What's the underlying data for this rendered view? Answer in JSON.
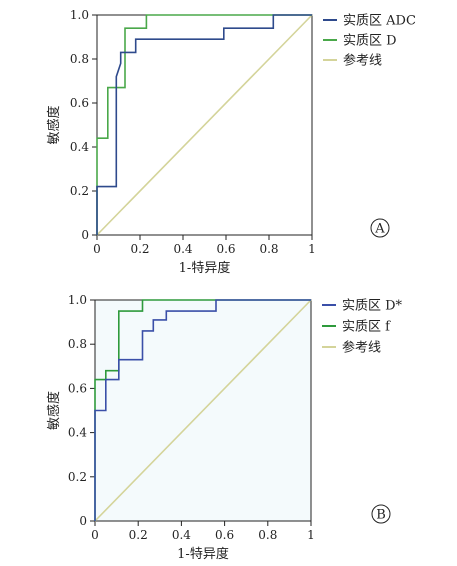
{
  "chart_data": [
    {
      "type": "line",
      "panel_label": "A",
      "xlabel": "1-特异度",
      "ylabel": "敏感度",
      "xlim": [
        0,
        1
      ],
      "ylim": [
        0,
        1
      ],
      "xticks": [
        "0",
        "0.2",
        "0.4",
        "0.6",
        "0.8",
        "1"
      ],
      "yticks": [
        "0",
        "0.2",
        "0.4",
        "0.6",
        "0.8",
        "1.0"
      ],
      "background": "#ffffff",
      "legend_position": "right-top",
      "series": [
        {
          "name": "实质区 ADC",
          "color": "#2e4a8c",
          "x": [
            0,
            0,
            0.09,
            0.09,
            0.11,
            0.11,
            0.18,
            0.18,
            0.59,
            0.59,
            0.82,
            0.82,
            1
          ],
          "y": [
            0,
            0.22,
            0.22,
            0.72,
            0.78,
            0.83,
            0.83,
            0.89,
            0.89,
            0.94,
            0.94,
            1,
            1
          ]
        },
        {
          "name": "实质区 D",
          "color": "#4aa84a",
          "x": [
            0,
            0,
            0.05,
            0.05,
            0.13,
            0.13,
            0.23,
            0.23,
            1
          ],
          "y": [
            0,
            0.44,
            0.44,
            0.67,
            0.67,
            0.94,
            0.94,
            1,
            1
          ]
        },
        {
          "name": "参考线",
          "color": "#d4d49a",
          "x": [
            0,
            1
          ],
          "y": [
            0,
            1
          ]
        }
      ]
    },
    {
      "type": "line",
      "panel_label": "B",
      "xlabel": "1-特异度",
      "ylabel": "敏感度",
      "xlim": [
        0,
        1
      ],
      "ylim": [
        0,
        1
      ],
      "xticks": [
        "0",
        "0.2",
        "0.4",
        "0.6",
        "0.8",
        "1"
      ],
      "yticks": [
        "0",
        "0.2",
        "0.4",
        "0.6",
        "0.8",
        "1.0"
      ],
      "background": "#f4fafc",
      "legend_position": "right-top",
      "series": [
        {
          "name": "实质区 D*",
          "color": "#3a4fa8",
          "x": [
            0,
            0,
            0.05,
            0.05,
            0.11,
            0.11,
            0.22,
            0.22,
            0.27,
            0.27,
            0.33,
            0.33,
            0.56,
            0.56,
            1
          ],
          "y": [
            0,
            0.5,
            0.5,
            0.64,
            0.64,
            0.73,
            0.73,
            0.86,
            0.86,
            0.91,
            0.91,
            0.95,
            0.95,
            1,
            1
          ]
        },
        {
          "name": "实质区 f",
          "color": "#2e9a3c",
          "x": [
            0,
            0,
            0.05,
            0.05,
            0.11,
            0.11,
            0.22,
            0.22,
            1
          ],
          "y": [
            0,
            0.64,
            0.64,
            0.68,
            0.68,
            0.95,
            0.95,
            1,
            1
          ]
        },
        {
          "name": "参考线",
          "color": "#d4d49a",
          "x": [
            0,
            1
          ],
          "y": [
            0,
            1
          ]
        }
      ]
    }
  ]
}
